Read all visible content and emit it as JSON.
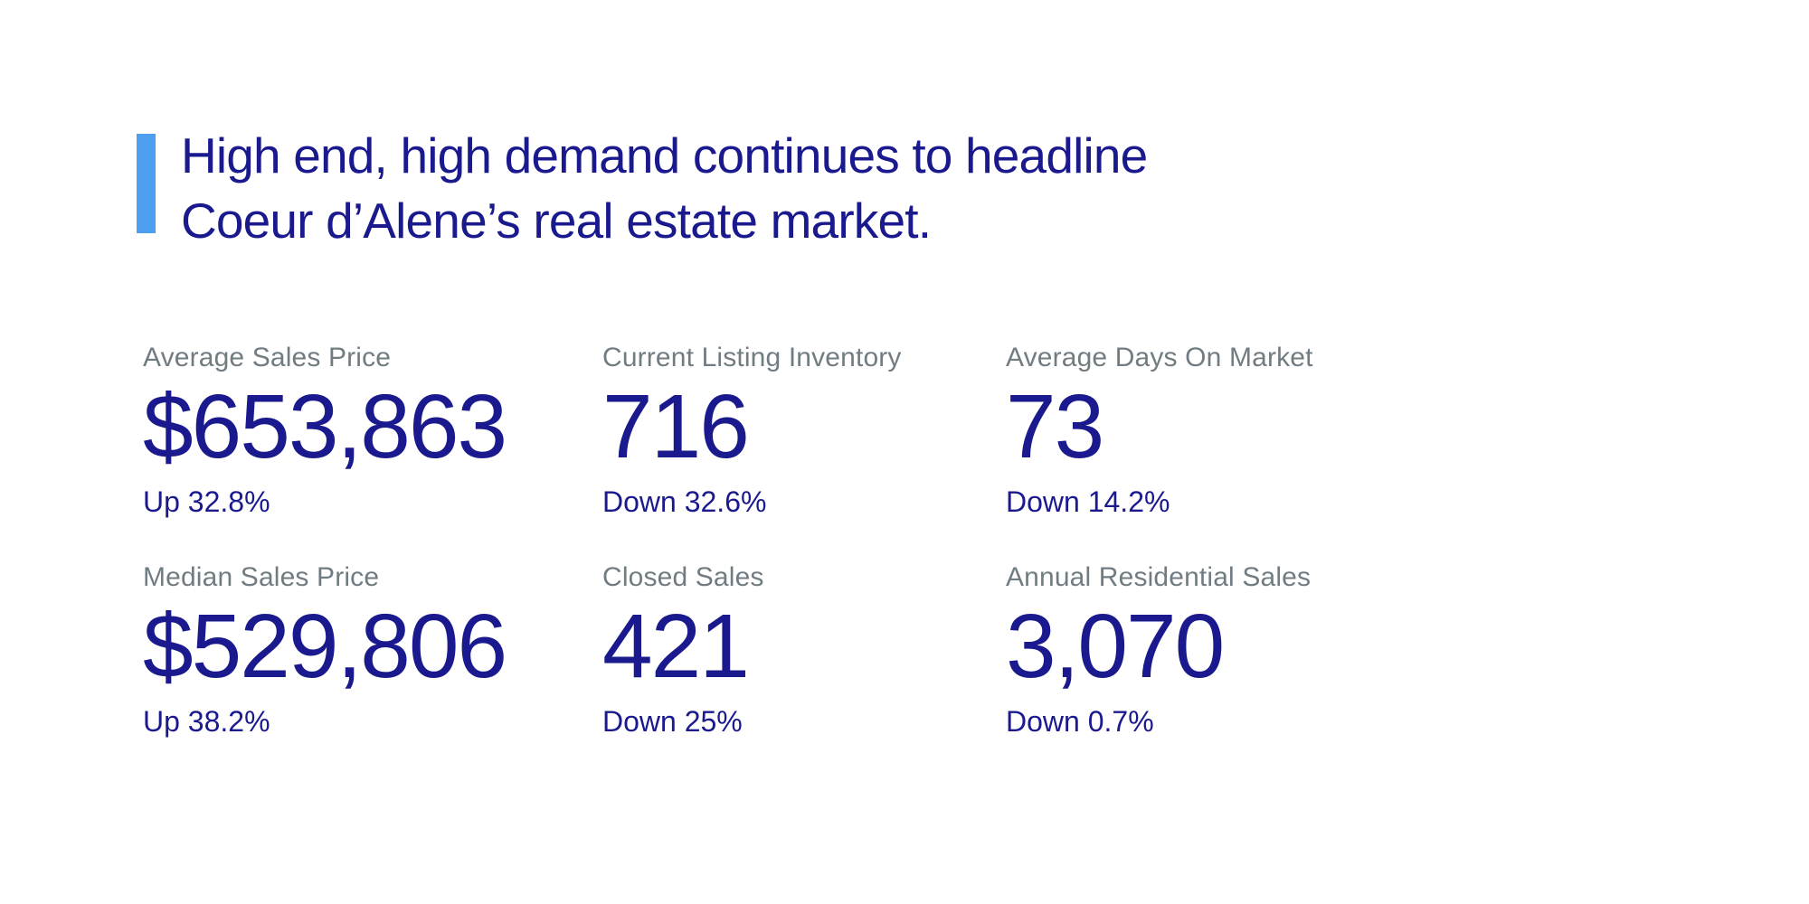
{
  "colors": {
    "page_bg": "#ffffff",
    "navy": "#1a1a8e",
    "accent_blue": "#4d9ff0",
    "label_gray": "#717c82"
  },
  "headline": {
    "line1": "High end, high demand continues to headline",
    "line2": "Coeur d’Alene’s real estate market."
  },
  "stats": [
    {
      "label": "Average Sales Price",
      "value": "$653,863",
      "change": "Up 32.8%"
    },
    {
      "label": "Current Listing Inventory",
      "value": "716",
      "change": "Down 32.6%"
    },
    {
      "label": "Average Days On Market",
      "value": "73",
      "change": "Down 14.2%"
    },
    {
      "label": "Median Sales Price",
      "value": "$529,806",
      "change": "Up 38.2%"
    },
    {
      "label": "Closed Sales",
      "value": "421",
      "change": "Down 25%"
    },
    {
      "label": "Annual Residential Sales",
      "value": "3,070",
      "change": "Down 0.7%"
    }
  ]
}
